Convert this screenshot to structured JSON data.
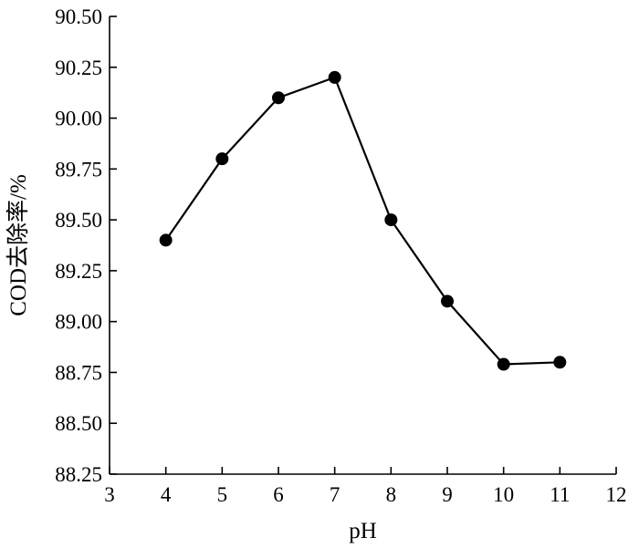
{
  "chart_data": {
    "type": "line",
    "title": "",
    "xlabel": "pH",
    "ylabel": "COD去除率/%",
    "xlim": [
      3,
      12
    ],
    "ylim": [
      88.25,
      90.5
    ],
    "xticks": [
      3,
      4,
      5,
      6,
      7,
      8,
      9,
      10,
      11,
      12
    ],
    "yticks": [
      88.25,
      88.5,
      88.75,
      89.0,
      89.25,
      89.5,
      89.75,
      90.0,
      90.25,
      90.5
    ],
    "xtick_labels": [
      "3",
      "4",
      "5",
      "6",
      "7",
      "8",
      "9",
      "10",
      "11",
      "12"
    ],
    "ytick_labels": [
      "88.25",
      "88.50",
      "88.75",
      "89.00",
      "89.25",
      "89.50",
      "89.75",
      "90.00",
      "90.25",
      "90.50"
    ],
    "grid": false,
    "series": [
      {
        "x": [
          4,
          5,
          6,
          7,
          8,
          9,
          10,
          11
        ],
        "y": [
          89.4,
          89.8,
          90.1,
          90.2,
          89.5,
          89.1,
          88.79,
          88.8
        ],
        "color": "#000000",
        "marker": "circle"
      }
    ]
  }
}
